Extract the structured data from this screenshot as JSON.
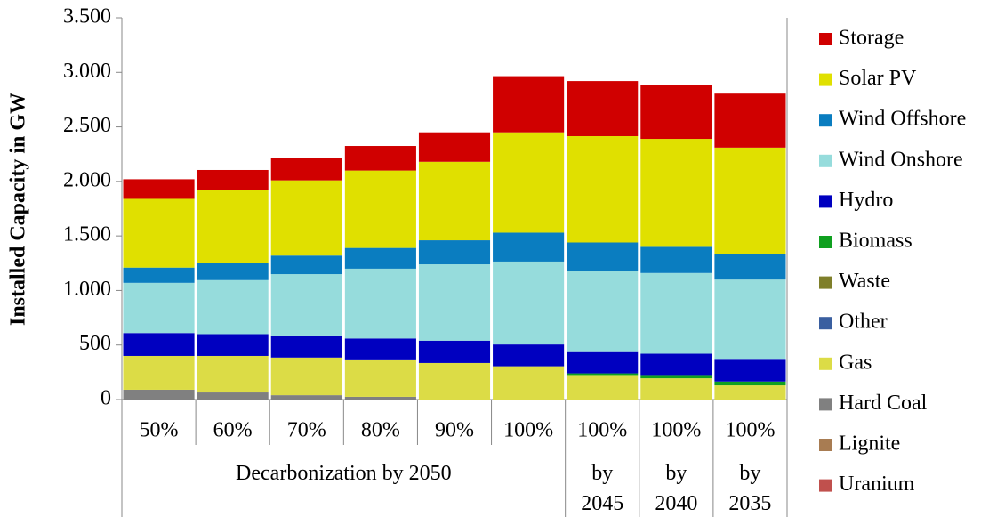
{
  "chart_data": {
    "type": "stacked-bar",
    "y_label": "Installed Capacity in GW",
    "categories": [
      "50%",
      "60%",
      "70%",
      "80%",
      "90%",
      "100%",
      "100%",
      "100%",
      "100%"
    ],
    "category_groups": [
      "Decarbonization by 2050",
      "Decarbonization by 2050",
      "Decarbonization by 2050",
      "Decarbonization by 2050",
      "Decarbonization by 2050",
      "Decarbonization by 2050",
      "by 2045",
      "by 2040",
      "by 2035"
    ],
    "ylim": [
      0,
      3500
    ],
    "yticks": [
      0,
      500,
      {
        "value": 1000,
        "label": "1.000"
      },
      {
        "value": 1500,
        "label": "1.500"
      },
      {
        "value": 2000,
        "label": "2.000"
      },
      {
        "value": 2500,
        "label": "2.500"
      },
      {
        "value": 3000,
        "label": "3.000"
      },
      {
        "value": 3500,
        "label": "3.500"
      }
    ],
    "series": [
      {
        "name": "Uranium",
        "color": "#c0504d",
        "values": [
          0,
          0,
          0,
          0,
          0,
          0,
          0,
          0,
          0
        ]
      },
      {
        "name": "Lignite",
        "color": "#a87c52",
        "values": [
          0,
          0,
          0,
          0,
          0,
          0,
          0,
          0,
          0
        ]
      },
      {
        "name": "Hard Coal",
        "color": "#808080",
        "values": [
          90,
          65,
          40,
          25,
          0,
          0,
          0,
          0,
          0
        ]
      },
      {
        "name": "Gas",
        "color": "#dcdc46",
        "values": [
          310,
          335,
          345,
          335,
          335,
          305,
          225,
          195,
          130
        ]
      },
      {
        "name": "Other",
        "color": "#3a5fa0",
        "values": [
          0,
          0,
          0,
          0,
          0,
          0,
          0,
          0,
          0
        ]
      },
      {
        "name": "Waste",
        "color": "#7f7f2a",
        "values": [
          0,
          0,
          0,
          0,
          0,
          0,
          0,
          0,
          0
        ]
      },
      {
        "name": "Biomass",
        "color": "#10a020",
        "values": [
          0,
          0,
          0,
          0,
          0,
          0,
          15,
          30,
          35
        ]
      },
      {
        "name": "Hydro",
        "color": "#0000c0",
        "values": [
          210,
          200,
          195,
          200,
          205,
          200,
          195,
          195,
          200
        ]
      },
      {
        "name": "Wind Onshore",
        "color": "#96dcdc",
        "values": [
          460,
          495,
          570,
          640,
          700,
          760,
          745,
          740,
          735
        ]
      },
      {
        "name": "Wind Offshore",
        "color": "#0a7dc0",
        "values": [
          140,
          155,
          170,
          190,
          220,
          265,
          260,
          240,
          230
        ]
      },
      {
        "name": "Solar PV",
        "color": "#e0e000",
        "values": [
          630,
          670,
          690,
          710,
          720,
          920,
          975,
          990,
          980
        ]
      },
      {
        "name": "Storage",
        "color": "#d00000",
        "values": [
          180,
          185,
          205,
          225,
          270,
          515,
          505,
          495,
          495
        ]
      }
    ]
  }
}
